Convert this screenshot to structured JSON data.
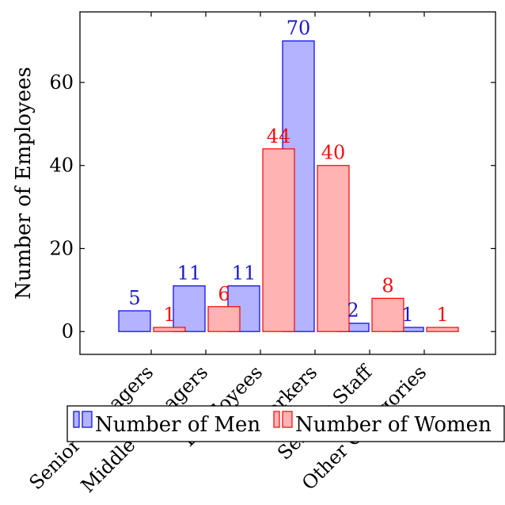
{
  "chart_data": {
    "type": "bar",
    "ylabel": "Number of Employees",
    "xlabel": "",
    "categories": [
      "Senior Managers",
      "Middle Managers",
      "Employees",
      "Workers",
      "Service Staff",
      "Other Categories"
    ],
    "ylim": [
      -5.5,
      77
    ],
    "yticks": [
      0,
      20,
      40,
      60
    ],
    "series": [
      {
        "name": "Number of Men",
        "values": [
          5,
          11,
          11,
          70,
          2,
          1
        ],
        "fill": "#b3b3ff",
        "stroke": "#0000ff",
        "label_color": "#1a1acc"
      },
      {
        "name": "Number of Women",
        "values": [
          1,
          6,
          44,
          40,
          8,
          1
        ],
        "fill": "#ffb3b3",
        "stroke": "#ff0000",
        "label_color": "#ee1111"
      }
    ],
    "legend_position": "below axes"
  }
}
